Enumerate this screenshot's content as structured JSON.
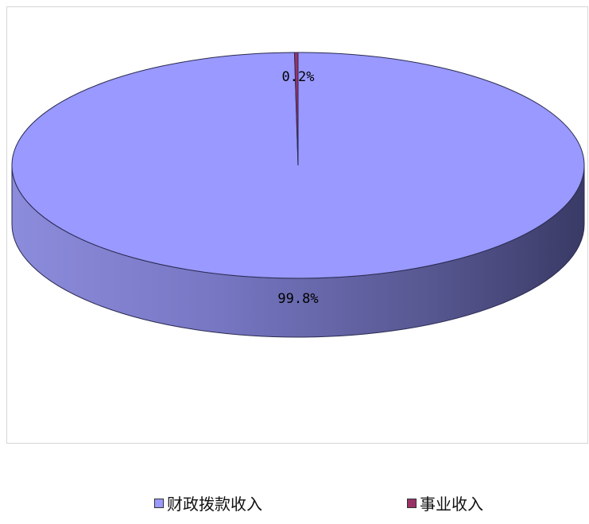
{
  "chart_data": {
    "type": "pie",
    "title": "",
    "categories": [
      "财政拨款收入",
      "事业收入"
    ],
    "values": [
      99.8,
      0.2
    ],
    "labels": [
      "99.8%",
      "0.2%"
    ],
    "colors": [
      "#9999FF",
      "#993366"
    ],
    "legend_position": "bottom",
    "three_d": true
  },
  "legend": {
    "items": [
      {
        "label": "财政拨款收入",
        "color": "#9999FF"
      },
      {
        "label": "事业收入",
        "color": "#993366"
      }
    ]
  }
}
